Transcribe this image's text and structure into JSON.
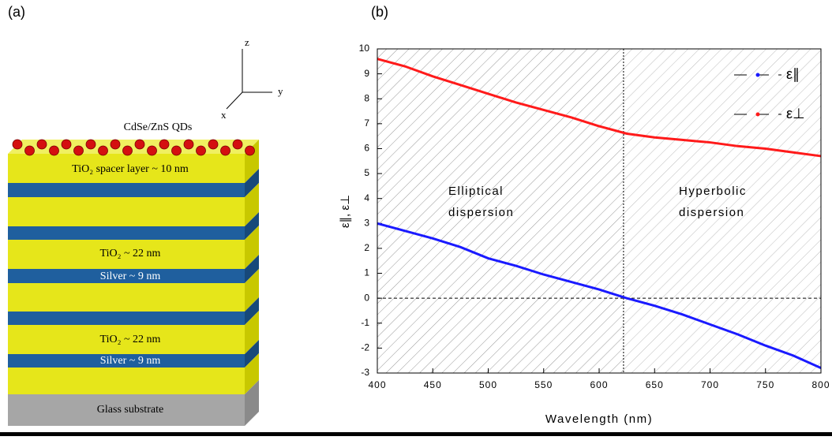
{
  "panel_a": {
    "label": "(a)",
    "axes": {
      "z": "z",
      "y": "y",
      "x": "x"
    },
    "qd_label": "CdSe/ZnS QDs",
    "spacer_label": "TiO₂ spacer layer ~ 10 nm",
    "tio2_labels": [
      "TiO₂ ~ 22 nm",
      "TiO₂ ~ 22 nm"
    ],
    "silver_labels": [
      "Silver ~ 9 nm",
      "Silver ~ 9 nm"
    ],
    "substrate_label": "Glass substrate"
  },
  "chart_data": {
    "type": "line",
    "panel_label": "(b)",
    "xlabel": "Wavelength (nm)",
    "ylabel": "ε∥, ε⊥",
    "x": [
      400,
      425,
      450,
      475,
      500,
      525,
      550,
      575,
      600,
      625,
      650,
      675,
      700,
      725,
      750,
      775,
      800
    ],
    "series": [
      {
        "name": "ε∥",
        "color": "#1a1aff",
        "values": [
          3.0,
          2.7,
          2.4,
          2.05,
          1.6,
          1.3,
          0.95,
          0.65,
          0.35,
          0.0,
          -0.3,
          -0.65,
          -1.05,
          -1.45,
          -1.9,
          -2.3,
          -2.8
        ]
      },
      {
        "name": "ε⊥",
        "color": "#ff1a1a",
        "values": [
          9.6,
          9.3,
          8.9,
          8.55,
          8.2,
          7.85,
          7.55,
          7.25,
          6.9,
          6.6,
          6.45,
          6.35,
          6.25,
          6.1,
          6.0,
          5.85,
          5.7
        ]
      }
    ],
    "xlim": [
      400,
      800
    ],
    "xticks": [
      400,
      450,
      500,
      550,
      600,
      650,
      700,
      750,
      800
    ],
    "ylim": [
      -3,
      10
    ],
    "yticks": [
      -3,
      -2,
      -1,
      0,
      1,
      2,
      3,
      4,
      5,
      6,
      7,
      8,
      9,
      10
    ],
    "reference_lines": {
      "x": 622,
      "y": 0
    },
    "annotations": [
      "Elliptical",
      "dispersion",
      "Hyperbolic",
      "dispersion"
    ],
    "legend": "upper right"
  }
}
